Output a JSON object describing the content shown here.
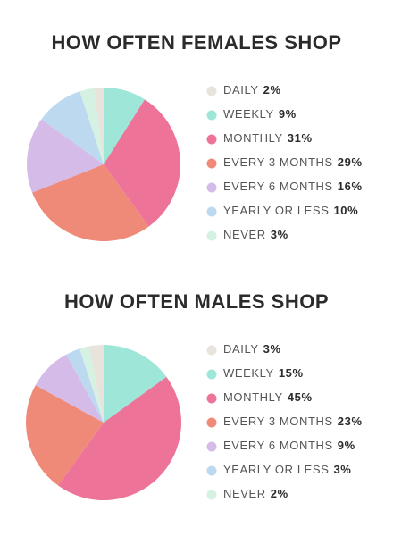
{
  "chart_data": [
    {
      "type": "pie",
      "title": "HOW OFTEN FEMALES SHOP",
      "categories": [
        "DAILY",
        "WEEKLY",
        "MONTHLY",
        "EVERY 3 MONTHS",
        "EVERY 6 MONTHS",
        "YEARLY OR LESS",
        "NEVER"
      ],
      "values": [
        2,
        9,
        31,
        29,
        16,
        10,
        3
      ],
      "value_labels": [
        "2%",
        "9%",
        "31%",
        "29%",
        "16%",
        "10%",
        "3%"
      ],
      "colors": [
        "#e8e3dc",
        "#9de6d8",
        "#ee7398",
        "#f08a78",
        "#d5bbe8",
        "#bcd9ef",
        "#d5f1e2"
      ]
    },
    {
      "type": "pie",
      "title": "HOW OFTEN MALES SHOP",
      "categories": [
        "DAILY",
        "WEEKLY",
        "MONTHLY",
        "EVERY 3 MONTHS",
        "EVERY 6 MONTHS",
        "YEARLY OR LESS",
        "NEVER"
      ],
      "values": [
        3,
        15,
        45,
        23,
        9,
        3,
        2
      ],
      "value_labels": [
        "3%",
        "15%",
        "45%",
        "23%",
        "9%",
        "3%",
        "2%"
      ],
      "colors": [
        "#e8e3dc",
        "#9de6d8",
        "#ee7398",
        "#f08a78",
        "#d5bbe8",
        "#bcd9ef",
        "#d5f1e2"
      ]
    }
  ]
}
